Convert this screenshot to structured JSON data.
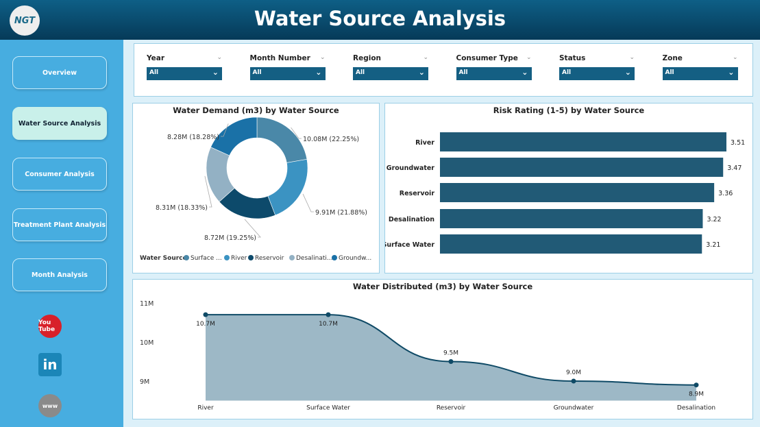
{
  "header": {
    "title": "Water Source Analysis",
    "logo_text": "NGT"
  },
  "sidebar": {
    "items": [
      {
        "label": "Overview"
      },
      {
        "label": "Water Source Analysis",
        "active": true
      },
      {
        "label": "Consumer Analysis"
      },
      {
        "label": "Treatment Plant Analysis"
      },
      {
        "label": "Month Analysis"
      }
    ],
    "social": [
      {
        "icon": "youtube-icon",
        "label": "You Tube"
      },
      {
        "icon": "linkedin-icon",
        "label": "in"
      },
      {
        "icon": "web-icon",
        "label": "www"
      }
    ]
  },
  "filters": [
    {
      "label": "Year",
      "value": "All"
    },
    {
      "label": "Month Number",
      "value": "All"
    },
    {
      "label": "Region",
      "value": "All"
    },
    {
      "label": "Consumer Type",
      "value": "All"
    },
    {
      "label": "Status",
      "value": "All"
    },
    {
      "label": "Zone",
      "value": "All"
    }
  ],
  "chart_data": [
    {
      "type": "pie",
      "donut": true,
      "title": "Water Demand (m3) by Water Source",
      "legend_title": "Water Source",
      "legend_position": "bottom",
      "legend_labels": [
        "Surface ...",
        "River",
        "Reservoir",
        "Desalinati...",
        "Groundw..."
      ],
      "categories": [
        "Surface Water",
        "River",
        "Reservoir",
        "Desalination",
        "Groundwater"
      ],
      "values": [
        10.08,
        9.91,
        8.72,
        8.31,
        8.28
      ],
      "data_labels": [
        "10.08M (22.25%)",
        "9.91M (21.88%)",
        "8.72M (19.25%)",
        "8.31M (18.33%)",
        "8.28M (18.28%)"
      ],
      "colors": [
        "#4a88a8",
        "#3b93c2",
        "#0d4a6b",
        "#93b1c4",
        "#1a71a7"
      ]
    },
    {
      "type": "bar",
      "orientation": "horizontal",
      "title": "Risk Rating (1-5) by Water Source",
      "categories": [
        "River",
        "Groundwater",
        "Reservoir",
        "Desalination",
        "Surface Water"
      ],
      "values": [
        3.51,
        3.47,
        3.36,
        3.22,
        3.21
      ],
      "color": "#215a76"
    },
    {
      "type": "area",
      "title": "Water Distributed (m3) by Water Source",
      "categories": [
        "River",
        "Surface Water",
        "Reservoir",
        "Groundwater",
        "Desalination"
      ],
      "values": [
        10.7,
        10.7,
        9.5,
        9.0,
        8.9
      ],
      "data_labels": [
        "10.7M",
        "10.7M",
        "9.5M",
        "9.0M",
        "8.9M"
      ],
      "y_ticks": [
        "9M",
        "10M",
        "11M"
      ],
      "y_tick_values": [
        9,
        10,
        11
      ],
      "ylim": [
        8.5,
        11
      ],
      "line_color": "#0f4a66",
      "fill_color": "#9db8c6"
    }
  ]
}
